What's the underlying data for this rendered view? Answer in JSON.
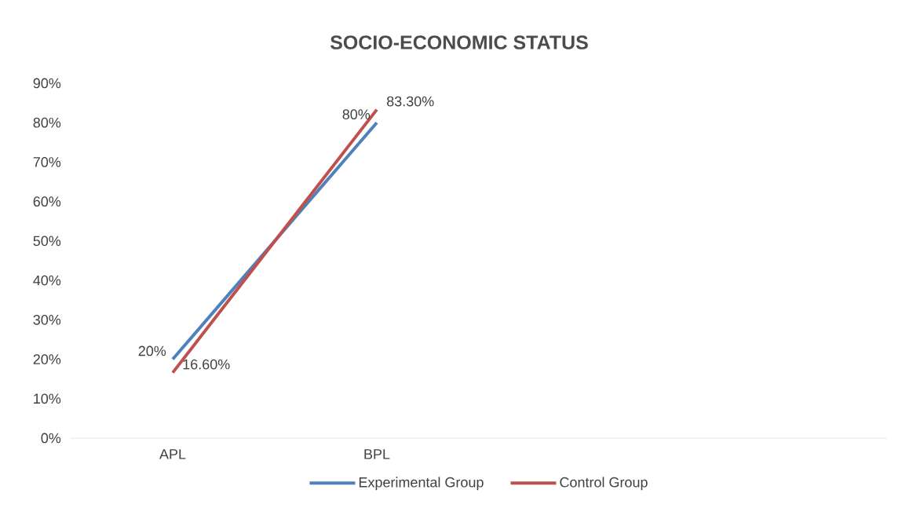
{
  "chart_data": {
    "type": "line",
    "title": "SOCIO-ECONOMIC STATUS",
    "categories": [
      "APL",
      "BPL",
      null,
      null
    ],
    "series": [
      {
        "name": "Experimental Group",
        "color": "#4f81bd",
        "values": [
          20,
          80,
          null,
          null
        ],
        "value_labels": [
          "20%",
          "80%",
          null,
          null
        ]
      },
      {
        "name": "Control Group",
        "color": "#c0504d",
        "values": [
          16.6,
          83.3,
          null,
          null
        ],
        "value_labels": [
          "16.60%",
          "83.30%",
          null,
          null
        ]
      }
    ],
    "ylim": [
      0,
      90
    ],
    "yticks": [
      {
        "value": 0,
        "label": "0%"
      },
      {
        "value": 10,
        "label": "10%"
      },
      {
        "value": 20,
        "label": "20%"
      },
      {
        "value": 30,
        "label": "30%"
      },
      {
        "value": 40,
        "label": "40%"
      },
      {
        "value": 50,
        "label": "50%"
      },
      {
        "value": 60,
        "label": "60%"
      },
      {
        "value": 70,
        "label": "70%"
      },
      {
        "value": 80,
        "label": "80%"
      },
      {
        "value": 90,
        "label": "90%"
      }
    ],
    "grid": false,
    "legend": "bottom",
    "marker": "none",
    "line_style": "solid"
  }
}
